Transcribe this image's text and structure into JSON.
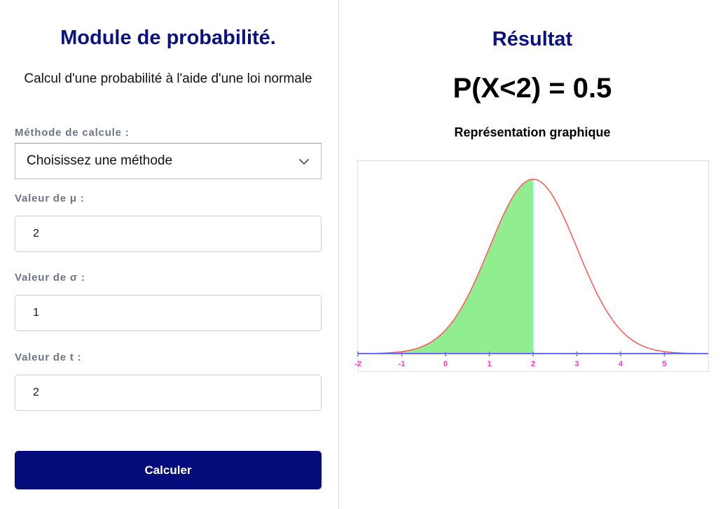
{
  "form": {
    "title": "Module de probabilité.",
    "subtitle": "Calcul d'une probabilité à l'aide d'une loi normale",
    "method_label": "Méthode de calcule :",
    "method_placeholder": "Choisissez une méthode",
    "mu_label": "Valeur de μ :",
    "mu_value": "2",
    "sigma_label": "Valeur de σ :",
    "sigma_value": "1",
    "t_label": "Valeur de t :",
    "t_value": "2",
    "submit_label": "Calculer"
  },
  "result": {
    "title": "Résultat",
    "value": "P(X<2) = 0.5",
    "chart_caption": "Représentation graphique"
  },
  "colors": {
    "accent": "#040b7a",
    "curve": "#ff4d4d",
    "shaded_area": "#90ee90",
    "axis": "#6a6aff",
    "tick_labels": "#ff33cc",
    "threshold_line": "#7fffd4"
  },
  "icons": {
    "select_chevron": "chevron-down-icon"
  },
  "chart_data": {
    "type": "area",
    "distribution": "normal",
    "mu": 2,
    "sigma": 1,
    "shade_below": 2,
    "xlim": [
      -2,
      6
    ],
    "x_ticks": [
      -2,
      -1,
      0,
      1,
      2,
      3,
      4,
      5
    ],
    "x_tick_labels": [
      "-2",
      "-1",
      "0",
      "1",
      "2",
      "3",
      "4",
      "5"
    ],
    "title": "",
    "xlabel": "",
    "ylabel": ""
  }
}
